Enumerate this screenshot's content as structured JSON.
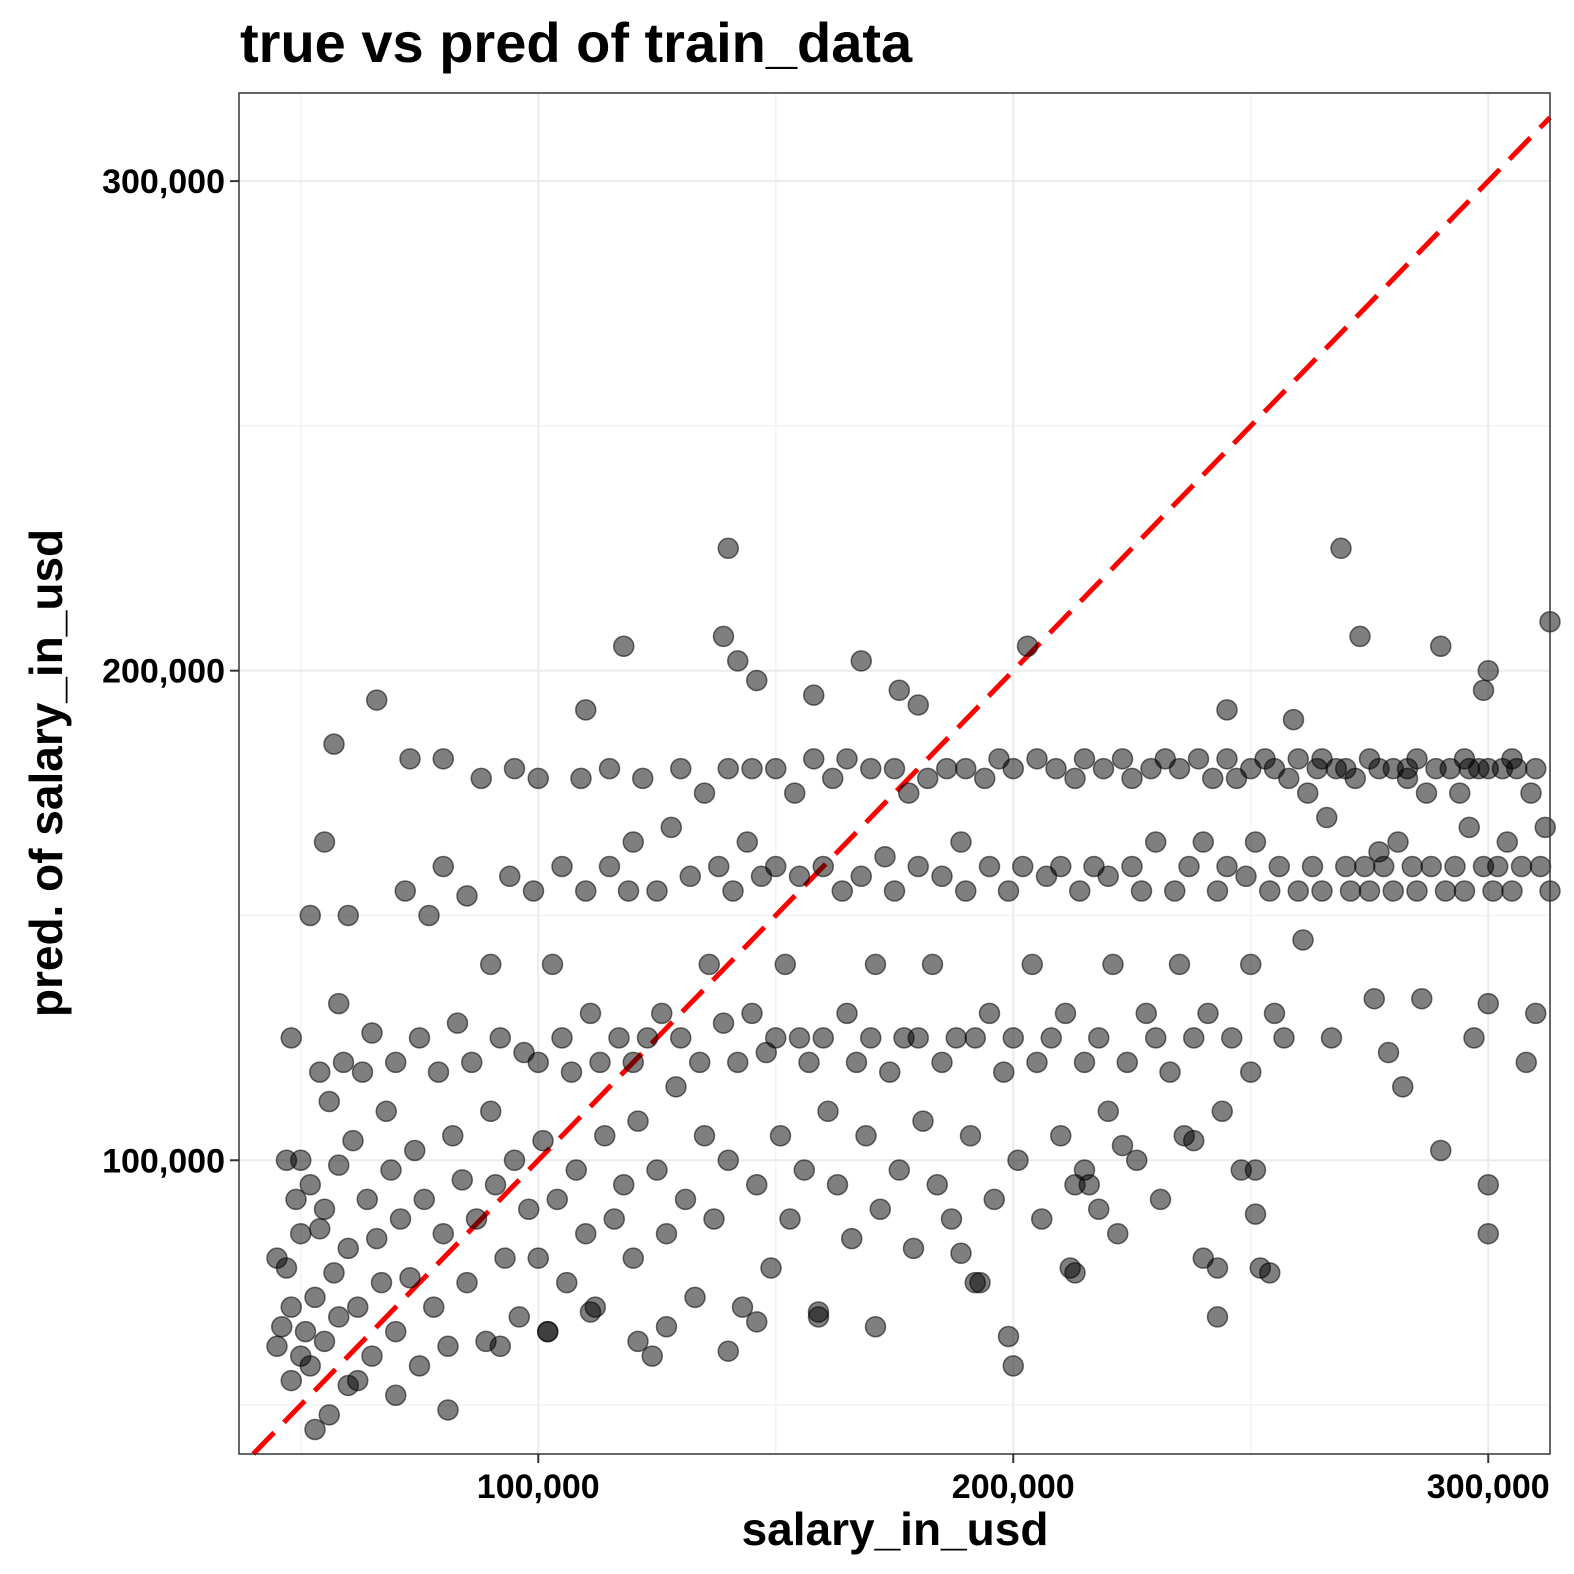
{
  "chart_data": {
    "type": "scatter",
    "title": "true vs pred of train_data",
    "xlabel": "salary_in_usd",
    "ylabel": "pred. of salary_in_usd",
    "xlim": [
      37000,
      313000
    ],
    "ylim": [
      40000,
      318000
    ],
    "x_ticks": [
      100000,
      200000,
      300000
    ],
    "x_tick_labels": [
      "100,000",
      "200,000",
      "300,000"
    ],
    "y_ticks": [
      100000,
      200000,
      300000
    ],
    "y_tick_labels": [
      "100,000",
      "200,000",
      "300,000"
    ],
    "grid": true,
    "reference_line": {
      "type": "identity",
      "color": "#ff0000",
      "style": "dashed",
      "slope": 1,
      "intercept": 0
    },
    "point_color": "#000000",
    "point_opacity": 0.5,
    "points": [
      [
        45000,
        62000
      ],
      [
        45000,
        80000
      ],
      [
        46000,
        66000
      ],
      [
        47000,
        78000
      ],
      [
        48000,
        55000
      ],
      [
        48000,
        70000
      ],
      [
        49000,
        92000
      ],
      [
        50000,
        100000
      ],
      [
        50000,
        60000
      ],
      [
        50000,
        85000
      ],
      [
        51000,
        65000
      ],
      [
        52000,
        95000
      ],
      [
        52000,
        58000
      ],
      [
        53000,
        72000
      ],
      [
        54000,
        86000
      ],
      [
        55000,
        63000
      ],
      [
        55000,
        90000
      ],
      [
        56000,
        112000
      ],
      [
        57000,
        77000
      ],
      [
        58000,
        68000
      ],
      [
        58000,
        99000
      ],
      [
        59000,
        120000
      ],
      [
        60000,
        82000
      ],
      [
        60000,
        54000
      ],
      [
        61000,
        104000
      ],
      [
        62000,
        70000
      ],
      [
        63000,
        118000
      ],
      [
        64000,
        92000
      ],
      [
        65000,
        60000
      ],
      [
        65000,
        126000
      ],
      [
        66000,
        84000
      ],
      [
        67000,
        75000
      ],
      [
        68000,
        110000
      ],
      [
        69000,
        98000
      ],
      [
        70000,
        65000
      ],
      [
        70000,
        120000
      ],
      [
        71000,
        88000
      ],
      [
        72000,
        155000
      ],
      [
        73000,
        76000
      ],
      [
        74000,
        102000
      ],
      [
        75000,
        125000
      ],
      [
        75000,
        58000
      ],
      [
        76000,
        92000
      ],
      [
        77000,
        150000
      ],
      [
        78000,
        70000
      ],
      [
        79000,
        118000
      ],
      [
        80000,
        85000
      ],
      [
        80000,
        160000
      ],
      [
        81000,
        62000
      ],
      [
        82000,
        105000
      ],
      [
        83000,
        128000
      ],
      [
        84000,
        96000
      ],
      [
        85000,
        154000
      ],
      [
        85000,
        75000
      ],
      [
        86000,
        120000
      ],
      [
        87000,
        88000
      ],
      [
        88000,
        178000
      ],
      [
        89000,
        63000
      ],
      [
        90000,
        110000
      ],
      [
        90000,
        140000
      ],
      [
        91000,
        95000
      ],
      [
        92000,
        125000
      ],
      [
        93000,
        80000
      ],
      [
        94000,
        158000
      ],
      [
        95000,
        100000
      ],
      [
        95000,
        180000
      ],
      [
        96000,
        68000
      ],
      [
        97000,
        122000
      ],
      [
        98000,
        90000
      ],
      [
        99000,
        155000
      ],
      [
        100000,
        120000
      ],
      [
        100000,
        80000
      ],
      [
        100000,
        178000
      ],
      [
        101000,
        104000
      ],
      [
        102000,
        65000
      ],
      [
        103000,
        140000
      ],
      [
        104000,
        92000
      ],
      [
        105000,
        125000
      ],
      [
        105000,
        160000
      ],
      [
        106000,
        75000
      ],
      [
        107000,
        118000
      ],
      [
        108000,
        98000
      ],
      [
        109000,
        178000
      ],
      [
        110000,
        85000
      ],
      [
        110000,
        155000
      ],
      [
        111000,
        130000
      ],
      [
        112000,
        70000
      ],
      [
        113000,
        120000
      ],
      [
        114000,
        105000
      ],
      [
        115000,
        160000
      ],
      [
        115000,
        180000
      ],
      [
        116000,
        88000
      ],
      [
        117000,
        125000
      ],
      [
        118000,
        95000
      ],
      [
        119000,
        155000
      ],
      [
        120000,
        120000
      ],
      [
        120000,
        165000
      ],
      [
        120000,
        80000
      ],
      [
        121000,
        108000
      ],
      [
        122000,
        178000
      ],
      [
        123000,
        125000
      ],
      [
        124000,
        60000
      ],
      [
        125000,
        98000
      ],
      [
        125000,
        155000
      ],
      [
        126000,
        130000
      ],
      [
        127000,
        85000
      ],
      [
        128000,
        168000
      ],
      [
        129000,
        115000
      ],
      [
        130000,
        180000
      ],
      [
        130000,
        125000
      ],
      [
        131000,
        92000
      ],
      [
        132000,
        158000
      ],
      [
        133000,
        72000
      ],
      [
        134000,
        120000
      ],
      [
        135000,
        105000
      ],
      [
        135000,
        175000
      ],
      [
        136000,
        140000
      ],
      [
        137000,
        88000
      ],
      [
        138000,
        160000
      ],
      [
        139000,
        128000
      ],
      [
        140000,
        180000
      ],
      [
        140000,
        225000
      ],
      [
        140000,
        100000
      ],
      [
        141000,
        155000
      ],
      [
        142000,
        120000
      ],
      [
        143000,
        70000
      ],
      [
        144000,
        165000
      ],
      [
        145000,
        130000
      ],
      [
        145000,
        180000
      ],
      [
        146000,
        95000
      ],
      [
        147000,
        158000
      ],
      [
        148000,
        122000
      ],
      [
        149000,
        78000
      ],
      [
        150000,
        180000
      ],
      [
        150000,
        125000
      ],
      [
        150000,
        160000
      ],
      [
        151000,
        105000
      ],
      [
        152000,
        140000
      ],
      [
        153000,
        88000
      ],
      [
        154000,
        175000
      ],
      [
        155000,
        125000
      ],
      [
        155000,
        158000
      ],
      [
        156000,
        98000
      ],
      [
        157000,
        120000
      ],
      [
        158000,
        182000
      ],
      [
        159000,
        68000
      ],
      [
        160000,
        160000
      ],
      [
        160000,
        125000
      ],
      [
        161000,
        110000
      ],
      [
        162000,
        178000
      ],
      [
        163000,
        95000
      ],
      [
        164000,
        155000
      ],
      [
        165000,
        130000
      ],
      [
        165000,
        182000
      ],
      [
        166000,
        84000
      ],
      [
        167000,
        120000
      ],
      [
        168000,
        158000
      ],
      [
        169000,
        105000
      ],
      [
        170000,
        180000
      ],
      [
        170000,
        125000
      ],
      [
        171000,
        140000
      ],
      [
        172000,
        90000
      ],
      [
        173000,
        162000
      ],
      [
        174000,
        118000
      ],
      [
        175000,
        180000
      ],
      [
        175000,
        155000
      ],
      [
        176000,
        98000
      ],
      [
        177000,
        125000
      ],
      [
        178000,
        175000
      ],
      [
        179000,
        82000
      ],
      [
        180000,
        160000
      ],
      [
        180000,
        125000
      ],
      [
        180000,
        193000
      ],
      [
        181000,
        108000
      ],
      [
        182000,
        178000
      ],
      [
        183000,
        140000
      ],
      [
        184000,
        95000
      ],
      [
        185000,
        158000
      ],
      [
        185000,
        120000
      ],
      [
        186000,
        180000
      ],
      [
        187000,
        88000
      ],
      [
        188000,
        125000
      ],
      [
        189000,
        165000
      ],
      [
        190000,
        180000
      ],
      [
        190000,
        155000
      ],
      [
        191000,
        105000
      ],
      [
        192000,
        125000
      ],
      [
        193000,
        75000
      ],
      [
        194000,
        178000
      ],
      [
        195000,
        160000
      ],
      [
        195000,
        130000
      ],
      [
        196000,
        92000
      ],
      [
        197000,
        182000
      ],
      [
        198000,
        118000
      ],
      [
        199000,
        155000
      ],
      [
        200000,
        180000
      ],
      [
        200000,
        125000
      ],
      [
        200000,
        58000
      ],
      [
        201000,
        100000
      ],
      [
        202000,
        160000
      ],
      [
        203000,
        205000
      ],
      [
        204000,
        140000
      ],
      [
        205000,
        182000
      ],
      [
        205000,
        120000
      ],
      [
        206000,
        88000
      ],
      [
        207000,
        158000
      ],
      [
        208000,
        125000
      ],
      [
        209000,
        180000
      ],
      [
        210000,
        105000
      ],
      [
        210000,
        160000
      ],
      [
        211000,
        130000
      ],
      [
        212000,
        78000
      ],
      [
        213000,
        178000
      ],
      [
        214000,
        155000
      ],
      [
        215000,
        120000
      ],
      [
        215000,
        182000
      ],
      [
        216000,
        95000
      ],
      [
        217000,
        160000
      ],
      [
        218000,
        125000
      ],
      [
        219000,
        180000
      ],
      [
        220000,
        110000
      ],
      [
        220000,
        158000
      ],
      [
        221000,
        140000
      ],
      [
        222000,
        85000
      ],
      [
        223000,
        182000
      ],
      [
        224000,
        120000
      ],
      [
        225000,
        160000
      ],
      [
        225000,
        178000
      ],
      [
        226000,
        100000
      ],
      [
        227000,
        155000
      ],
      [
        228000,
        130000
      ],
      [
        229000,
        180000
      ],
      [
        230000,
        125000
      ],
      [
        230000,
        165000
      ],
      [
        231000,
        92000
      ],
      [
        232000,
        182000
      ],
      [
        233000,
        118000
      ],
      [
        234000,
        155000
      ],
      [
        235000,
        180000
      ],
      [
        235000,
        140000
      ],
      [
        236000,
        105000
      ],
      [
        237000,
        160000
      ],
      [
        238000,
        125000
      ],
      [
        239000,
        182000
      ],
      [
        240000,
        165000
      ],
      [
        240000,
        80000
      ],
      [
        241000,
        130000
      ],
      [
        242000,
        178000
      ],
      [
        243000,
        155000
      ],
      [
        244000,
        110000
      ],
      [
        245000,
        182000
      ],
      [
        245000,
        160000
      ],
      [
        246000,
        125000
      ],
      [
        247000,
        178000
      ],
      [
        248000,
        98000
      ],
      [
        249000,
        158000
      ],
      [
        250000,
        180000
      ],
      [
        250000,
        140000
      ],
      [
        250000,
        118000
      ],
      [
        251000,
        165000
      ],
      [
        252000,
        78000
      ],
      [
        253000,
        182000
      ],
      [
        254000,
        155000
      ],
      [
        255000,
        130000
      ],
      [
        255000,
        180000
      ],
      [
        256000,
        160000
      ],
      [
        257000,
        125000
      ],
      [
        258000,
        178000
      ],
      [
        259000,
        190000
      ],
      [
        260000,
        155000
      ],
      [
        260000,
        182000
      ],
      [
        261000,
        145000
      ],
      [
        262000,
        175000
      ],
      [
        263000,
        160000
      ],
      [
        264000,
        180000
      ],
      [
        265000,
        155000
      ],
      [
        265000,
        182000
      ],
      [
        266000,
        170000
      ],
      [
        267000,
        125000
      ],
      [
        268000,
        180000
      ],
      [
        269000,
        225000
      ],
      [
        270000,
        160000
      ],
      [
        270000,
        180000
      ],
      [
        271000,
        155000
      ],
      [
        272000,
        178000
      ],
      [
        273000,
        207000
      ],
      [
        274000,
        160000
      ],
      [
        275000,
        182000
      ],
      [
        275000,
        155000
      ],
      [
        276000,
        133000
      ],
      [
        277000,
        180000
      ],
      [
        278000,
        160000
      ],
      [
        279000,
        122000
      ],
      [
        280000,
        180000
      ],
      [
        280000,
        155000
      ],
      [
        281000,
        165000
      ],
      [
        282000,
        115000
      ],
      [
        283000,
        180000
      ],
      [
        284000,
        160000
      ],
      [
        285000,
        155000
      ],
      [
        285000,
        182000
      ],
      [
        286000,
        133000
      ],
      [
        287000,
        175000
      ],
      [
        288000,
        160000
      ],
      [
        289000,
        180000
      ],
      [
        290000,
        205000
      ],
      [
        290000,
        102000
      ],
      [
        291000,
        155000
      ],
      [
        292000,
        180000
      ],
      [
        293000,
        160000
      ],
      [
        294000,
        175000
      ],
      [
        295000,
        182000
      ],
      [
        295000,
        155000
      ],
      [
        296000,
        168000
      ],
      [
        297000,
        125000
      ],
      [
        298000,
        180000
      ],
      [
        299000,
        160000
      ],
      [
        300000,
        200000
      ],
      [
        300000,
        180000
      ],
      [
        300000,
        95000
      ],
      [
        300000,
        85000
      ],
      [
        300000,
        132000
      ],
      [
        301000,
        155000
      ],
      [
        302000,
        160000
      ],
      [
        303000,
        180000
      ],
      [
        304000,
        165000
      ],
      [
        305000,
        182000
      ],
      [
        305000,
        155000
      ],
      [
        306000,
        180000
      ],
      [
        307000,
        160000
      ],
      [
        308000,
        120000
      ],
      [
        309000,
        175000
      ],
      [
        310000,
        180000
      ],
      [
        310000,
        130000
      ],
      [
        311000,
        160000
      ],
      [
        312000,
        168000
      ],
      [
        313000,
        155000
      ],
      [
        313000,
        210000
      ],
      [
        296000,
        180000
      ],
      [
        299000,
        196000
      ],
      [
        283000,
        178000
      ],
      [
        277000,
        163000
      ],
      [
        245000,
        192000
      ],
      [
        168000,
        202000
      ],
      [
        158000,
        195000
      ],
      [
        142000,
        202000
      ],
      [
        139000,
        207000
      ],
      [
        118000,
        205000
      ],
      [
        146000,
        198000
      ],
      [
        176000,
        196000
      ],
      [
        110000,
        192000
      ],
      [
        66000,
        194000
      ],
      [
        57000,
        185000
      ],
      [
        73000,
        182000
      ],
      [
        55000,
        165000
      ],
      [
        80000,
        182000
      ],
      [
        60000,
        150000
      ],
      [
        52000,
        150000
      ],
      [
        58000,
        132000
      ],
      [
        48000,
        125000
      ],
      [
        54000,
        118000
      ],
      [
        47000,
        100000
      ],
      [
        215000,
        98000
      ],
      [
        218000,
        90000
      ],
      [
        213000,
        95000
      ],
      [
        223000,
        103000
      ],
      [
        238000,
        104000
      ],
      [
        243000,
        78000
      ],
      [
        243000,
        68000
      ],
      [
        251000,
        98000
      ],
      [
        251000,
        89000
      ],
      [
        254000,
        77000
      ],
      [
        213000,
        77000
      ],
      [
        199000,
        64000
      ],
      [
        192000,
        75000
      ],
      [
        189000,
        81000
      ],
      [
        171000,
        66000
      ],
      [
        159000,
        69000
      ],
      [
        146000,
        67000
      ],
      [
        140000,
        61000
      ],
      [
        127000,
        66000
      ],
      [
        121000,
        63000
      ],
      [
        111000,
        69000
      ],
      [
        102000,
        65000
      ],
      [
        92000,
        62000
      ],
      [
        81000,
        49000
      ],
      [
        70000,
        52000
      ],
      [
        62000,
        55000
      ],
      [
        56000,
        48000
      ],
      [
        53000,
        45000
      ]
    ]
  }
}
